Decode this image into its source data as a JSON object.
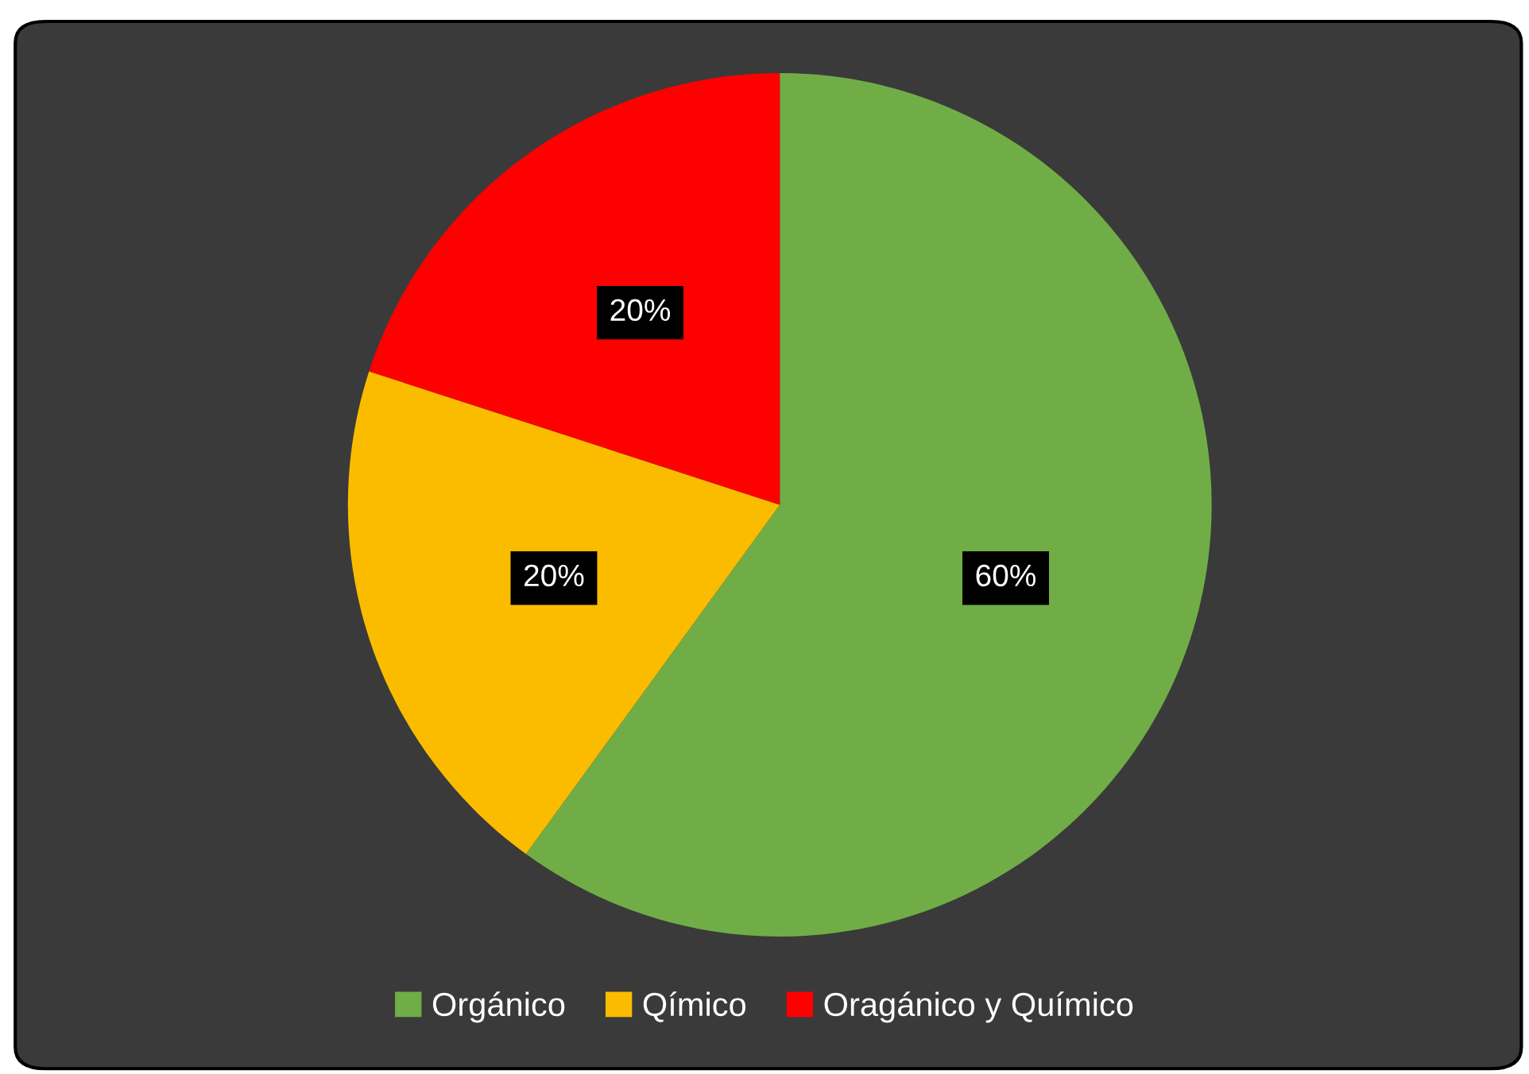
{
  "chart_data": {
    "type": "pie",
    "categories": [
      "Orgánico",
      "Qímico",
      "Oragánico y Químico"
    ],
    "values": [
      60,
      20,
      20
    ],
    "colors": [
      "#70ad47",
      "#fbbc00",
      "#ff0000"
    ],
    "value_labels": [
      "60%",
      "20%",
      "20%"
    ],
    "legend": "bottom"
  }
}
